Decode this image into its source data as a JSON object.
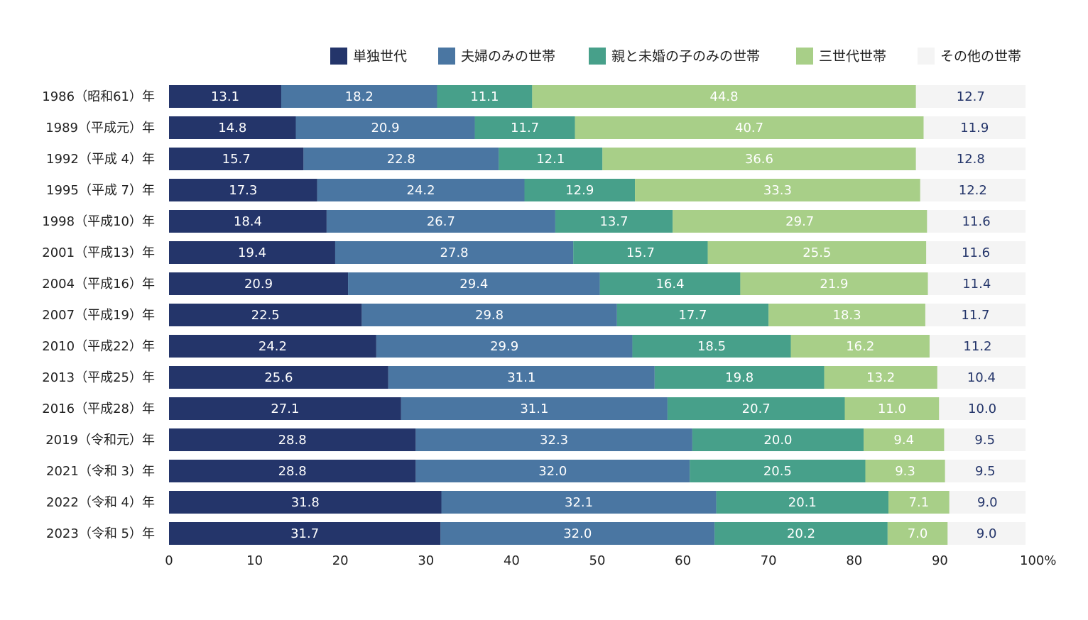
{
  "colors": {
    "single": "#24356a",
    "couple": "#4a76a2",
    "couple_children": "#47a08a",
    "three_gen": "#a8cf88",
    "other": "#f4f4f4",
    "label_light": "#ffffff",
    "label_dark": "#24356a",
    "text": "#222222"
  },
  "chart_data": {
    "type": "bar",
    "orientation": "horizontal",
    "stacked": true,
    "legend_position": "top-right",
    "grid": false,
    "xlim": [
      0,
      100
    ],
    "xticks": [
      "0",
      "10",
      "20",
      "30",
      "40",
      "50",
      "60",
      "70",
      "80",
      "90",
      "100%"
    ],
    "categories": [
      "1986（昭和61）年",
      "1989（平成元）年",
      "1992（平成 4）年",
      "1995（平成 7）年",
      "1998（平成10）年",
      "2001（平成13）年",
      "2004（平成16）年",
      "2007（平成19）年",
      "2010（平成22）年",
      "2013（平成25）年",
      "2016（平成28）年",
      "2019（令和元）年",
      "2021（令和 3）年",
      "2022（令和 4）年",
      "2023（令和 5）年"
    ],
    "series": [
      {
        "name": "単独世代",
        "color": "#24356a",
        "label_color": "#ffffff",
        "values": [
          13.1,
          14.8,
          15.7,
          17.3,
          18.4,
          19.4,
          20.9,
          22.5,
          24.2,
          25.6,
          27.1,
          28.8,
          28.8,
          31.8,
          31.7
        ],
        "labels": [
          "13.1",
          "14.8",
          "15.7",
          "17.3",
          "18.4",
          "19.4",
          "20.9",
          "22.5",
          "24.2",
          "25.6",
          "27.1",
          "28.8",
          "28.8",
          "31.8",
          "31.7"
        ]
      },
      {
        "name": "夫婦のみの世帯",
        "color": "#4a76a2",
        "label_color": "#ffffff",
        "values": [
          18.2,
          20.9,
          22.8,
          24.2,
          26.7,
          27.8,
          29.4,
          29.8,
          29.9,
          31.1,
          31.1,
          32.3,
          32.0,
          32.1,
          32.0
        ],
        "labels": [
          "18.2",
          "20.9",
          "22.8",
          "24.2",
          "26.7",
          "27.8",
          "29.4",
          "29.8",
          "29.9",
          "31.1",
          "31.1",
          "32.3",
          "32.0",
          "32.1",
          "32.0"
        ]
      },
      {
        "name": "親と未婚の子のみの世帯",
        "color": "#47a08a",
        "label_color": "#ffffff",
        "values": [
          11.1,
          11.7,
          12.1,
          12.9,
          13.7,
          15.7,
          16.4,
          17.7,
          18.5,
          19.8,
          20.7,
          20.0,
          20.5,
          20.1,
          20.2
        ],
        "labels": [
          "11.1",
          "11.7",
          "12.1",
          "12.9",
          "13.7",
          "15.7",
          "16.4",
          "17.7",
          "18.5",
          "19.8",
          "20.7",
          "20.0",
          "20.5",
          "20.1",
          "20.2"
        ]
      },
      {
        "name": "三世代世帯",
        "color": "#a8cf88",
        "label_color": "#ffffff",
        "values": [
          44.8,
          40.7,
          36.6,
          33.3,
          29.7,
          25.5,
          21.9,
          18.3,
          16.2,
          13.2,
          11.0,
          9.4,
          9.3,
          7.1,
          7.0
        ],
        "labels": [
          "44.8",
          "40.7",
          "36.6",
          "33.3",
          "29.7",
          "25.5",
          "21.9",
          "18.3",
          "16.2",
          "13.2",
          "11.0",
          "9.4",
          "9.3",
          "7.1",
          "7.0"
        ]
      },
      {
        "name": "その他の世帯",
        "color": "#f4f4f4",
        "label_color": "#24356a",
        "values": [
          12.7,
          11.9,
          12.8,
          12.2,
          11.6,
          11.6,
          11.4,
          11.7,
          11.2,
          10.4,
          10.0,
          9.5,
          9.5,
          9.0,
          9.0
        ],
        "labels": [
          "12.7",
          "11.9",
          "12.8",
          "12.2",
          "11.6",
          "11.6",
          "11.4",
          "11.7",
          "11.2",
          "10.4",
          "10.0",
          "9.5",
          "9.5",
          "9.0",
          "9.0"
        ]
      }
    ]
  }
}
